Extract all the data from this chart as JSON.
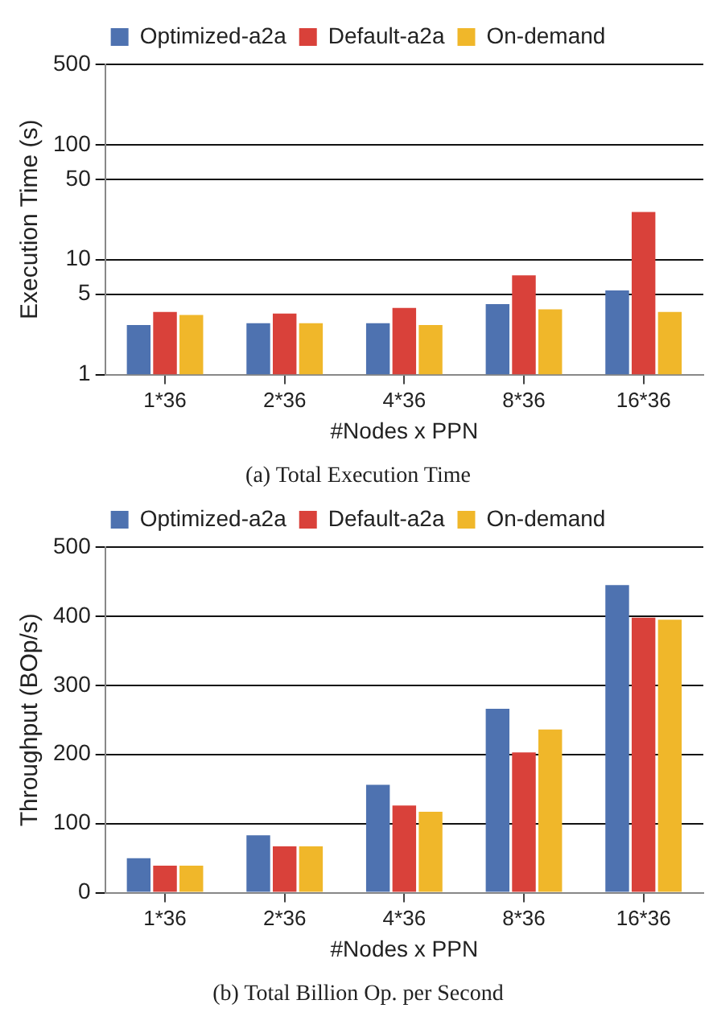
{
  "chart_data": [
    {
      "type": "bar",
      "title": "(a) Total Execution Time",
      "xlabel": "#Nodes x PPN",
      "ylabel": "Execution Time (s)",
      "categories": [
        "1*36",
        "2*36",
        "4*36",
        "8*36",
        "16*36"
      ],
      "series": [
        {
          "name": "Optimized-a2a",
          "color": "#4e72b0",
          "values": [
            2.7,
            2.8,
            2.8,
            4.1,
            5.4
          ]
        },
        {
          "name": "Default-a2a",
          "color": "#d9413a",
          "values": [
            3.5,
            3.4,
            3.8,
            7.3,
            26
          ]
        },
        {
          "name": "On-demand",
          "color": "#f0b72a",
          "values": [
            3.3,
            2.8,
            2.7,
            3.7,
            3.5
          ]
        }
      ],
      "log": "y",
      "ylim": [
        1,
        500
      ],
      "yticks": [
        1,
        5,
        10,
        50,
        100,
        500
      ],
      "grid": "y",
      "legend": "top"
    },
    {
      "type": "bar",
      "title": "(b) Total Billion Op. per Second",
      "xlabel": "#Nodes x PPN",
      "ylabel": "Throughput (BOp/s)",
      "categories": [
        "1*36",
        "2*36",
        "4*36",
        "8*36",
        "16*36"
      ],
      "series": [
        {
          "name": "Optimized-a2a",
          "color": "#4e72b0",
          "values": [
            50,
            83,
            156,
            266,
            445
          ]
        },
        {
          "name": "Default-a2a",
          "color": "#d9413a",
          "values": [
            39,
            67,
            126,
            203,
            398
          ]
        },
        {
          "name": "On-demand",
          "color": "#f0b72a",
          "values": [
            39,
            67,
            117,
            236,
            395
          ]
        }
      ],
      "ylim": [
        0,
        500
      ],
      "yticks": [
        0,
        100,
        200,
        300,
        400,
        500
      ],
      "grid": "y",
      "legend": "top"
    }
  ]
}
